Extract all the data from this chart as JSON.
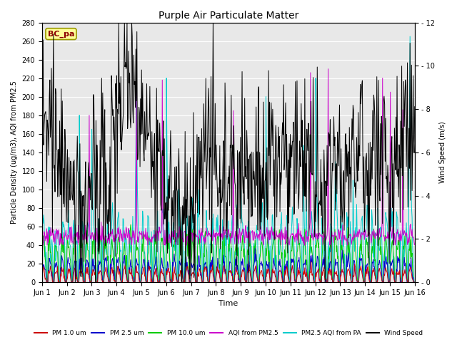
{
  "title": "Purple Air Particulate Matter",
  "xlabel": "Time",
  "ylabel_left": "Particle Density (ug/m3), AQI from PM2.5",
  "ylabel_right": "Wind Speed (m/s)",
  "annotation": "BC_pa",
  "ylim_left": [
    0,
    280
  ],
  "ylim_right": [
    0,
    12
  ],
  "yticks_left": [
    0,
    20,
    40,
    60,
    80,
    100,
    120,
    140,
    160,
    180,
    200,
    220,
    240,
    260,
    280
  ],
  "yticks_right": [
    0,
    2,
    4,
    6,
    8,
    10,
    12
  ],
  "series_colors": {
    "pm1": "#cc0000",
    "pm25": "#0000cc",
    "pm10": "#00cc00",
    "aqi_pm25": "#cc00cc",
    "aqi_pa": "#00cccc",
    "wind": "#000000"
  },
  "legend_labels": [
    "PM 1.0 um",
    "PM 2.5 um",
    "PM 10.0 um",
    "AQI from PM2.5",
    "PM2.5 AQI from PA",
    "Wind Speed"
  ],
  "legend_colors": [
    "#cc0000",
    "#0000cc",
    "#00cc00",
    "#cc00cc",
    "#00cccc",
    "#000000"
  ],
  "xtick_labels": [
    "Jun 1",
    "Jun 2",
    "Jun 3",
    "Jun 4",
    "Jun 5",
    "Jun 6",
    "Jun 7",
    "Jun 8",
    "Jun 9",
    "Jun 10",
    "Jun 11",
    "Jun 12",
    "Jun 13",
    "Jun 14",
    "Jun 15",
    "Jun 16"
  ],
  "plot_bg_color": "#e8e8e8",
  "fig_bg_color": "#ffffff",
  "n_points": 720
}
